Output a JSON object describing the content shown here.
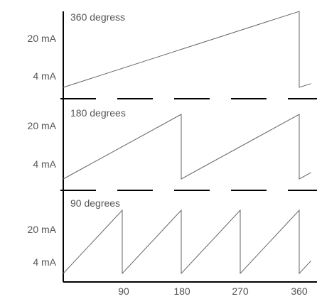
{
  "chart_data": {
    "type": "line",
    "x_ticks": [
      "90",
      "180",
      "270",
      "360"
    ],
    "colors": {
      "waveform": "#666666",
      "axis": "#000000",
      "text": "#555555"
    },
    "panels": [
      {
        "title": "360 degress",
        "y_ticks": [
          "20 mA",
          "4 mA"
        ],
        "ylim": [
          4,
          20
        ],
        "series": [
          {
            "x": [
              0,
              360,
              360,
              378
            ],
            "y": [
              4,
              20,
              4,
              4.8
            ]
          }
        ]
      },
      {
        "title": "180 degrees",
        "y_ticks": [
          "20 mA",
          "4 mA"
        ],
        "ylim": [
          4,
          20
        ],
        "series": [
          {
            "x": [
              0,
              180,
              180,
              360,
              360,
              378
            ],
            "y": [
              4,
              20,
              4,
              20,
              4,
              5.6
            ]
          }
        ]
      },
      {
        "title": "90 degrees",
        "y_ticks": [
          "20 mA",
          "4 mA"
        ],
        "ylim": [
          4,
          20
        ],
        "series": [
          {
            "x": [
              0,
              90,
              90,
              180,
              180,
              270,
              270,
              360,
              360,
              378
            ],
            "y": [
              4,
              20,
              4,
              20,
              4,
              20,
              4,
              20,
              4,
              7.2
            ]
          }
        ]
      }
    ]
  }
}
